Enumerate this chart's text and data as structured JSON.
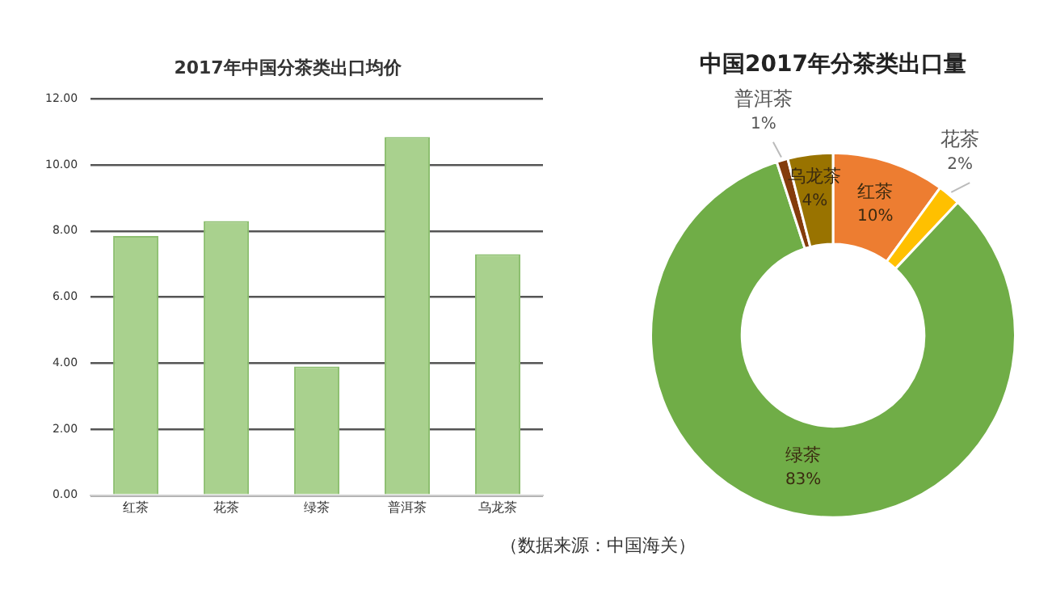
{
  "chart_data": [
    {
      "type": "bar",
      "title": "2017年中国分茶类出口均价",
      "categories": [
        "红茶",
        "花茶",
        "绿茶",
        "普洱茶",
        "乌龙茶"
      ],
      "values": [
        7.85,
        8.3,
        3.9,
        10.85,
        7.3
      ],
      "color": "#a9d18e",
      "ylim": [
        0,
        12
      ],
      "yticks": [
        {
          "value": 0,
          "label": "0.00"
        },
        {
          "value": 2,
          "label": "2.00"
        },
        {
          "value": 4,
          "label": "4.00"
        },
        {
          "value": 6,
          "label": "6.00"
        },
        {
          "value": 8,
          "label": "8.00"
        },
        {
          "value": 10,
          "label": "10.00"
        },
        {
          "value": 12,
          "label": "12.00"
        }
      ],
      "grid": "y",
      "legend": false,
      "annotations": [
        "（数据来源：中国海关）"
      ]
    },
    {
      "type": "donut",
      "title": "中国2017年分茶类出口量",
      "categories": [
        "红茶",
        "花茶",
        "绿茶",
        "普洱茶",
        "乌龙茶"
      ],
      "values": [
        10,
        2,
        83,
        1,
        4
      ],
      "colors": [
        "#ed7d31",
        "#ffc000",
        "#70ad47",
        "#843c0c",
        "#997300"
      ],
      "value_labels": [
        "10%",
        "2%",
        "83%",
        "1%",
        "4%"
      ],
      "legend": false
    }
  ]
}
